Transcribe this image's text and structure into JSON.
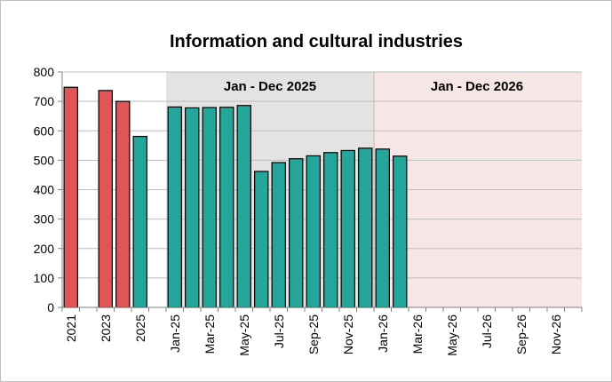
{
  "chart_data": {
    "type": "bar",
    "title": "Information and cultural industries",
    "xlabel": "",
    "ylabel": "",
    "ylim": [
      0,
      800
    ],
    "yticks": [
      0,
      100,
      200,
      300,
      400,
      500,
      600,
      700,
      800
    ],
    "grid": true,
    "legend": "none",
    "categories": [
      "2021",
      "2022",
      "2023",
      "2024",
      "2025",
      "",
      "Jan-25",
      "Feb-25",
      "Mar-25",
      "Apr-25",
      "May-25",
      "Jun-25",
      "Jul-25",
      "Aug-25",
      "Sep-25",
      "Oct-25",
      "Nov-25",
      "Dec-25",
      "Jan-26",
      "Feb-26",
      "Mar-26",
      "Apr-26",
      "May-26",
      "Jun-26",
      "Jul-26",
      "Aug-26",
      "Sep-26",
      "Oct-26",
      "Nov-26",
      "Dec-26"
    ],
    "tick_labels": [
      "2021",
      "2023",
      "2025",
      "Jan-25",
      "Mar-25",
      "May-25",
      "Jul-25",
      "Sep-25",
      "Nov-25",
      "Jan-26",
      "Mar-26",
      "May-26",
      "Jul-26",
      "Sep-26",
      "Nov-26"
    ],
    "tick_label_categories": [
      0,
      2,
      4,
      6,
      8,
      10,
      12,
      14,
      16,
      18,
      20,
      22,
      24,
      26,
      28
    ],
    "values": [
      748,
      null,
      737,
      700,
      581,
      null,
      681,
      678,
      679,
      680,
      686,
      462,
      492,
      505,
      515,
      526,
      533,
      541,
      538,
      514,
      null,
      null,
      null,
      null,
      null,
      null,
      null,
      null,
      null,
      null
    ],
    "bar_colors": [
      "#e05656",
      "#e05656",
      "#e05656",
      "#e05656",
      "#26a69a",
      "#26a69a",
      "#26a69a",
      "#26a69a",
      "#26a69a",
      "#26a69a",
      "#26a69a",
      "#26a69a",
      "#26a69a",
      "#26a69a",
      "#26a69a",
      "#26a69a",
      "#26a69a",
      "#26a69a",
      "#26a69a",
      "#26a69a",
      "#26a69a",
      "#26a69a",
      "#26a69a",
      "#26a69a",
      "#26a69a",
      "#26a69a",
      "#26a69a",
      "#26a69a",
      "#26a69a",
      "#26a69a"
    ],
    "bands": [
      {
        "label": "Jan - Dec 2025",
        "from": "Jan-25",
        "to": "Dec-25",
        "color": "#e3e3e3"
      },
      {
        "label": "Jan - Dec 2026",
        "from": "Jan-26",
        "to": "Dec-26",
        "color": "#f6e6e6"
      }
    ]
  }
}
